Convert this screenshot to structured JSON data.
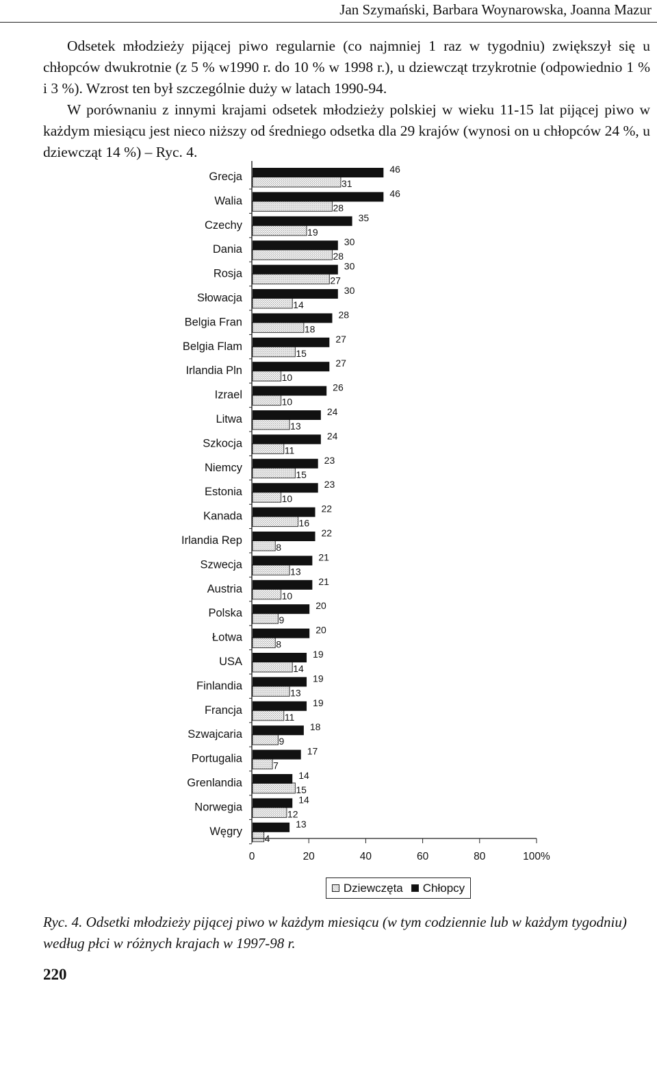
{
  "header": {
    "running_title": "Jan Szymański, Barbara Woynarowska, Joanna Mazur"
  },
  "body": {
    "paragraph1": "Odsetek młodzieży pijącej piwo regularnie (co najmniej 1 raz w tygodniu) zwiększył się u chłopców dwukrotnie (z 5 % w1990 r. do 10 % w 1998 r.), u dziewcząt trzykrotnie (odpowiednio 1 % i 3 %). Wzrost ten był szczególnie duży w latach 1990-94.",
    "paragraph2": "W porównaniu z innymi krajami odsetek młodzieży polskiej w wieku 11-15 lat pijącej piwo w każdym miesiącu jest nieco niższy od średniego odsetka dla 29 krajów (wynosi on u chłopców 24 %, u dziewcząt 14 %) – Ryc. 4."
  },
  "chart_data": {
    "type": "bar",
    "orientation": "horizontal",
    "categories": [
      "Grecja",
      "Walia",
      "Czechy",
      "Dania",
      "Rosja",
      "Słowacja",
      "Belgia Fran",
      "Belgia Flam",
      "Irlandia Pln",
      "Izrael",
      "Litwa",
      "Szkocja",
      "Niemcy",
      "Estonia",
      "Kanada",
      "Irlandia Rep",
      "Szwecja",
      "Austria",
      "Polska",
      "Łotwa",
      "USA",
      "Finlandia",
      "Francja",
      "Szwajcaria",
      "Portugalia",
      "Grenlandia",
      "Norwegia",
      "Węgry"
    ],
    "series": [
      {
        "name": "Chłopcy",
        "values": [
          46,
          46,
          35,
          30,
          30,
          30,
          28,
          27,
          27,
          26,
          24,
          24,
          23,
          23,
          22,
          22,
          21,
          21,
          20,
          20,
          19,
          19,
          19,
          18,
          17,
          14,
          14,
          13
        ]
      },
      {
        "name": "Dziewczęta",
        "values": [
          31,
          28,
          19,
          28,
          27,
          14,
          18,
          15,
          10,
          10,
          13,
          11,
          15,
          10,
          16,
          8,
          13,
          10,
          9,
          8,
          14,
          13,
          11,
          9,
          7,
          15,
          12,
          4
        ]
      }
    ],
    "x_ticks": [
      "0",
      "20",
      "40",
      "60",
      "80",
      "100%"
    ],
    "xlim": [
      0,
      100
    ],
    "legend": {
      "position": "bottom-center",
      "entries": [
        "Dziewczęta",
        "Chłopcy"
      ]
    },
    "grid": false,
    "colors": {
      "boys": "#111111",
      "girls_pattern": "#bbbbbb"
    }
  },
  "caption": {
    "text": "Ryc. 4. Odsetki młodzieży pijącej piwo w każdym miesiącu (w tym codziennie lub w każdym tygodniu) według płci w różnych krajach w 1997-98 r."
  },
  "page_number": "220"
}
